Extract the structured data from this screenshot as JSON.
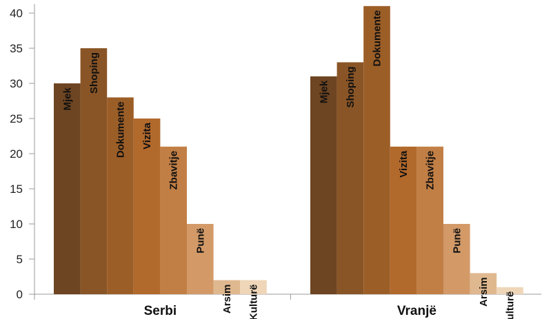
{
  "chart_data": {
    "type": "bar",
    "categories": [
      "Serbi",
      "Vranjë"
    ],
    "series": [
      {
        "name": "Mjek",
        "values": [
          30,
          31
        ],
        "color": "#6e4522"
      },
      {
        "name": "Shoping",
        "values": [
          35,
          33
        ],
        "color": "#8a5526"
      },
      {
        "name": "Dokumente",
        "values": [
          28,
          41
        ],
        "color": "#9c5e27"
      },
      {
        "name": "Vizita",
        "values": [
          25,
          21
        ],
        "color": "#b2692c"
      },
      {
        "name": "Zbavitje",
        "values": [
          21,
          21
        ],
        "color": "#c27f45"
      },
      {
        "name": "Punë",
        "values": [
          10,
          10
        ],
        "color": "#d39a68"
      },
      {
        "name": "Arsim",
        "values": [
          2,
          3
        ],
        "color": "#e0b88f"
      },
      {
        "name": "Kulturë",
        "values": [
          2,
          1
        ],
        "color": "#efd6b8"
      }
    ],
    "yticks": [
      0,
      5,
      10,
      15,
      20,
      25,
      30,
      35,
      40
    ],
    "ylim": [
      0,
      40
    ],
    "title": "",
    "xlabel": "",
    "ylabel": "",
    "grid": false,
    "legend": "none"
  }
}
